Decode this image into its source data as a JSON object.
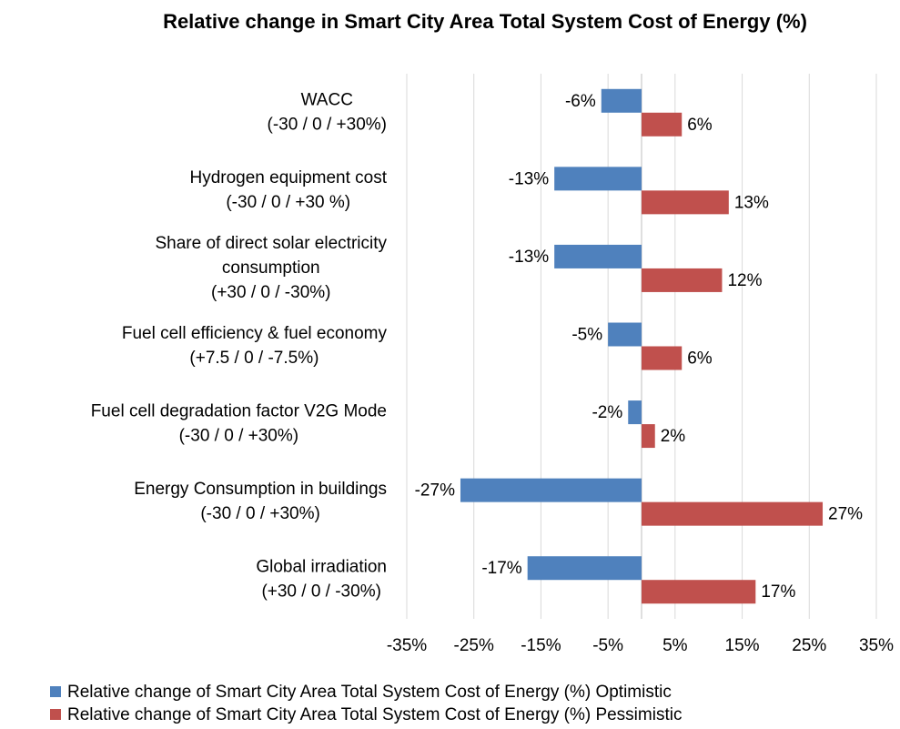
{
  "chart_data": {
    "type": "bar",
    "orientation": "horizontal",
    "title": "Relative change in Smart City Area Total System Cost of Energy (%)",
    "categories": [
      [
        "WACC",
        "(-30 / 0 / +30%)"
      ],
      [
        "Hydrogen equipment cost",
        "(-30 / 0 / +30 %)"
      ],
      [
        "Share of direct solar electricity",
        "consumption",
        "(+30 / 0 / -30%)"
      ],
      [
        "Fuel cell efficiency & fuel economy",
        "(+7.5 / 0 / -7.5%)"
      ],
      [
        "Fuel cell degradation factor V2G Mode",
        "(-30 / 0 / +30%)"
      ],
      [
        "Energy Consumption in buildings",
        "(-30 / 0 / +30%)"
      ],
      [
        "Global irradiation",
        "(+30 / 0 / -30%)"
      ]
    ],
    "series": [
      {
        "name": "Relative change of Smart City Area Total System Cost of Energy (%) Optimistic",
        "color": "#4f81bd",
        "values": [
          -6,
          -13,
          -13,
          -5,
          -2,
          -27,
          -17
        ],
        "value_labels": [
          "-6%",
          "-13%",
          "-13%",
          "-5%",
          "-2%",
          "-27%",
          "-17%"
        ]
      },
      {
        "name": "Relative change of Smart City Area Total System Cost of Energy (%) Pessimistic",
        "color": "#c0504d",
        "values": [
          6,
          13,
          12,
          6,
          2,
          27,
          17
        ],
        "value_labels": [
          "6%",
          "13%",
          "12%",
          "6%",
          "2%",
          "27%",
          "17%"
        ]
      }
    ],
    "xlim": [
      -35,
      35
    ],
    "xticks": [
      {
        "value": -35,
        "label": "-35%"
      },
      {
        "value": -25,
        "label": "-25%"
      },
      {
        "value": -15,
        "label": "-15%"
      },
      {
        "value": -5,
        "label": "-5%"
      },
      {
        "value": 5,
        "label": "5%"
      },
      {
        "value": 15,
        "label": "15%"
      },
      {
        "value": 25,
        "label": "25%"
      },
      {
        "value": 35,
        "label": "35%"
      }
    ],
    "grid": true,
    "legend": "bottom"
  }
}
